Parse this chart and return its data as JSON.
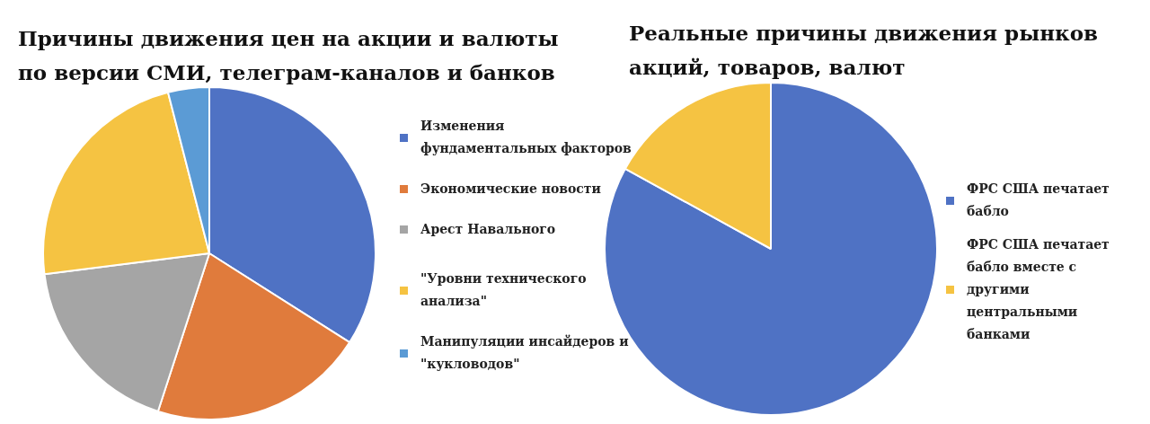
{
  "chart_data": [
    {
      "type": "pie",
      "title": "Причины движения цен на акции и валюты по версии СМИ, телеграм-каналов и банков",
      "categories": [
        "Изменения фундаментальных факторов",
        "Экономические новости",
        "Арест Навального",
        "\"Уровни технического анализа\"",
        "Манипуляции инсайдеров и \"кукловодов\""
      ],
      "values": [
        34,
        21,
        18,
        23,
        4
      ],
      "colors": [
        "#4f72c4",
        "#e07b3c",
        "#a5a5a5",
        "#f5c342",
        "#5b9bd5"
      ],
      "legend": "right"
    },
    {
      "type": "pie",
      "title": "Реальные причины движения рынков акций, товаров, валют",
      "categories": [
        "ФРС США печатает бабло",
        "ФРС США печатает бабло вместе с другими центральными банками"
      ],
      "values": [
        83,
        17
      ],
      "colors": [
        "#4f72c4",
        "#f5c342"
      ],
      "legend": "right"
    }
  ]
}
